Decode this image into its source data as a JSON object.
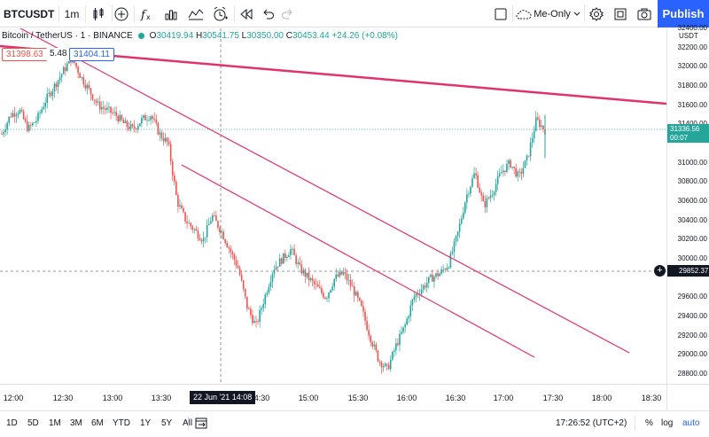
{
  "toolbar": {
    "symbol": "BTCUSDT",
    "interval": "1m",
    "layout_label": "Me-Only",
    "publish_label": "Publish"
  },
  "legend": {
    "title": "Bitcoin / TetherUS · 1 · BINANCE",
    "open_label": "O",
    "open": "30419.94",
    "high_label": "H",
    "high": "30541.75",
    "low_label": "L",
    "low": "30350.00",
    "close_label": "C",
    "close": "30453.44",
    "change": "+24.26 (+0.08%)"
  },
  "tags": {
    "left_price": "31398.63",
    "spread": "5.48",
    "right_price": "31404.11"
  },
  "price_axis": {
    "currency": "USDT",
    "labels": [
      "32200.00",
      "32000.00",
      "31800.00",
      "31600.00",
      "31400.00",
      "31000.00",
      "30800.00",
      "30600.00",
      "30400.00",
      "30200.00",
      "30000.00",
      "29600.00",
      "29400.00",
      "29200.00",
      "29000.00",
      "28800.00"
    ],
    "partial_top": "32400.00",
    "current_price": "31336.56",
    "countdown": "00:07",
    "crosshair_price": "29852.37"
  },
  "time_axis": {
    "labels": [
      "12:00",
      "12:30",
      "13:00",
      "13:30",
      "14:30",
      "15:00",
      "15:30",
      "16:00",
      "16:30",
      "17:00",
      "17:30",
      "18:00",
      "18:30"
    ],
    "crosshair_time": "22 Jun '21  14:08"
  },
  "bottom": {
    "ranges": [
      "1D",
      "5D",
      "1M",
      "3M",
      "6M",
      "YTD",
      "1Y",
      "5Y",
      "All"
    ],
    "clock": "17:26:52 (UTC+2)",
    "percent": "%",
    "log": "log",
    "auto": "auto"
  },
  "colors": {
    "up": "#26a69a",
    "down": "#ef5350",
    "trend": "#e0336c",
    "accent": "#2962ff"
  },
  "chart_data": {
    "type": "candlestick",
    "symbol": "BTCUSDT",
    "interval": "1m",
    "ylim": [
      28700,
      32400
    ],
    "close_path": [
      31300,
      31500,
      31550,
      31350,
      31450,
      31650,
      31800,
      31950,
      32100,
      31900,
      31750,
      31600,
      31550,
      31500,
      31400,
      31350,
      31450,
      31500,
      31300,
      31200,
      30600,
      30400,
      30300,
      30200,
      30450,
      30300,
      30100,
      29900,
      29500,
      29300,
      29600,
      29900,
      30000,
      30100,
      29900,
      29800,
      29700,
      29600,
      29800,
      29850,
      29700,
      29500,
      29200,
      28950,
      28850,
      29100,
      29300,
      29600,
      29700,
      29800,
      29850,
      29950,
      30250,
      30650,
      30900,
      30550,
      30700,
      30900,
      31000,
      30850,
      31050,
      31450,
      31336.56
    ],
    "icons": [
      "chart-type-icon",
      "indicators-icon",
      "compare-icon",
      "templates-icon",
      "alert-icon",
      "replay-icon",
      "undo-icon",
      "redo-icon",
      "layout-icon",
      "cloud-icon",
      "settings-icon",
      "fullscreen-icon",
      "camera-icon",
      "plus-circle-icon",
      "calendar-range-icon"
    ]
  }
}
